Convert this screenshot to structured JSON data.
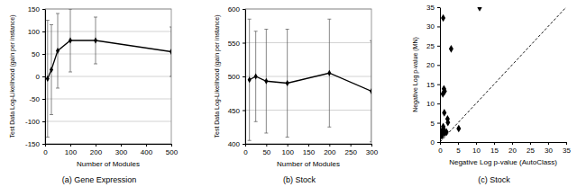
{
  "chart_data": [
    {
      "type": "line",
      "title": "(a) Gene Expression",
      "x_label": "Number of Modules",
      "y_label": "Test Data Log-Likelihood (gain per instance)",
      "x": [
        10,
        25,
        50,
        100,
        200,
        500
      ],
      "series": [
        {
          "values": [
            -5,
            15,
            57,
            80,
            80,
            55
          ],
          "errors": [
            130,
            100,
            83,
            70,
            52,
            55
          ],
          "color": "#000000",
          "marker": "diamond"
        }
      ],
      "xlim": [
        0,
        500
      ],
      "xticks": [
        0,
        100,
        200,
        300,
        400,
        500
      ],
      "ylim": [
        -150,
        150
      ],
      "yticks": [
        -150,
        -100,
        -50,
        0,
        50,
        100,
        150
      ],
      "grid": true
    },
    {
      "type": "line",
      "title": "(b) Stock",
      "x_label": "Number of Modules",
      "y_label": "Test Data Log-Likelihood (gain per instance)",
      "x": [
        10,
        25,
        50,
        100,
        200,
        300
      ],
      "series": [
        {
          "values": [
            495,
            500,
            493,
            490,
            505,
            478
          ],
          "errors": [
            90,
            67,
            77,
            80,
            80,
            75
          ],
          "color": "#000000",
          "marker": "diamond"
        }
      ],
      "xlim": [
        0,
        300
      ],
      "xticks": [
        0,
        50,
        100,
        150,
        200,
        250,
        300
      ],
      "ylim": [
        400,
        600
      ],
      "yticks": [
        400,
        450,
        500,
        550,
        600
      ],
      "grid": true
    },
    {
      "type": "scatter",
      "title": "(c) Stock",
      "x_label": "Negative Log p-value (AutoClass)",
      "y_label": "Negative Log p-value (MN)",
      "series": [
        {
          "type": "scatter",
          "color": "#000000",
          "marker": "diamond",
          "x": [
            11,
            0.9,
            3.1,
            1.1,
            1.3,
            0.8,
            1.2,
            2.1,
            2.2,
            0.9,
            5.2,
            1.0,
            0.6,
            0.4,
            1.4,
            0.3,
            0.7,
            0.5,
            1.8
          ],
          "values": [
            34.9,
            32.2,
            24.2,
            13.8,
            13.2,
            12.5,
            7.6,
            6.0,
            5.1,
            4.0,
            3.5,
            3.4,
            3.0,
            2.4,
            2.4,
            2.1,
            1.9,
            1.6,
            2.6
          ]
        },
        {
          "type": "line",
          "color": "#000000",
          "line_style": "dashed",
          "x": [
            0,
            35
          ],
          "values": [
            0,
            35
          ]
        }
      ],
      "xlim": [
        0,
        35
      ],
      "xticks": [
        0,
        5,
        10,
        15,
        20,
        25,
        30,
        35
      ],
      "ylim": [
        0,
        35
      ],
      "yticks": [
        0,
        5,
        10,
        15,
        20,
        25,
        30,
        35
      ],
      "grid": false
    }
  ]
}
